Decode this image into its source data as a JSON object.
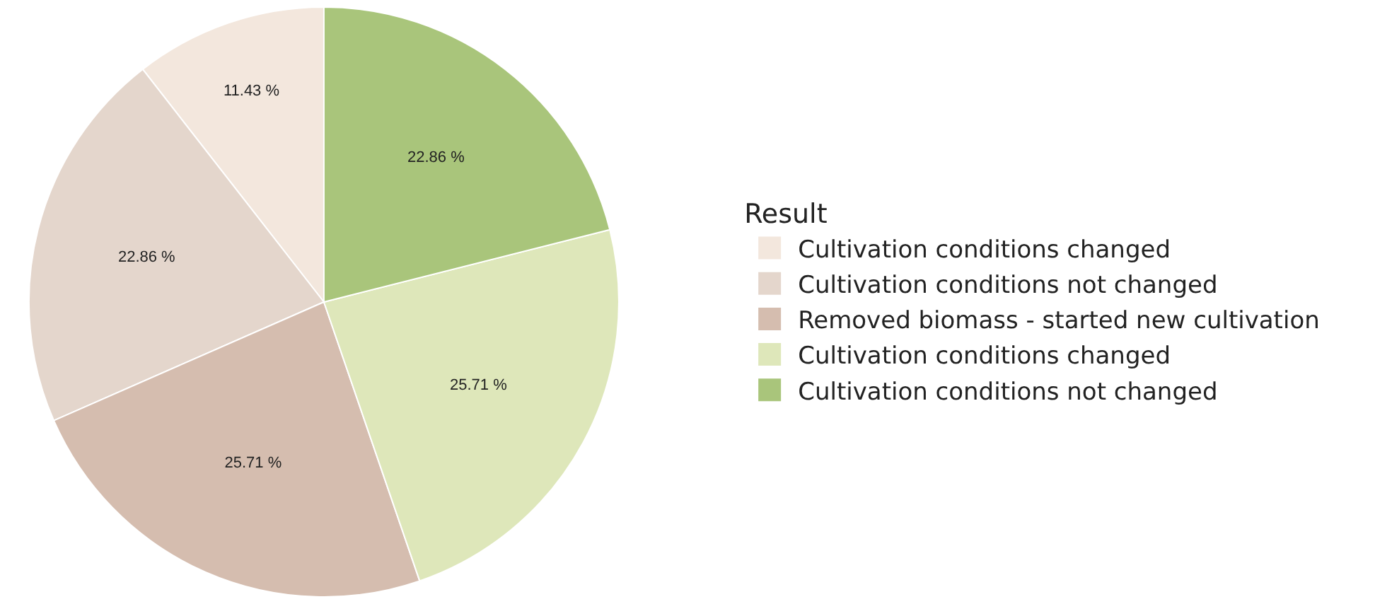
{
  "chart_data": {
    "type": "pie",
    "legend_title": "Result",
    "legend": "right",
    "categories": [
      "Cultivation conditions changed",
      "Cultivation conditions not changed",
      "Removed biomass - started new cultivation",
      "Cultivation conditions changed",
      "Cultivation conditions not changed"
    ],
    "values": [
      11.43,
      22.86,
      25.71,
      25.71,
      22.86
    ],
    "value_labels": [
      "11.43 %",
      "22.86 %",
      "25.71 %",
      "25.71 %",
      "22.86 %"
    ],
    "colors": [
      "#f3e7dd",
      "#e4d6cc",
      "#d5bdaf",
      "#dee7ba",
      "#a9c57b"
    ]
  }
}
